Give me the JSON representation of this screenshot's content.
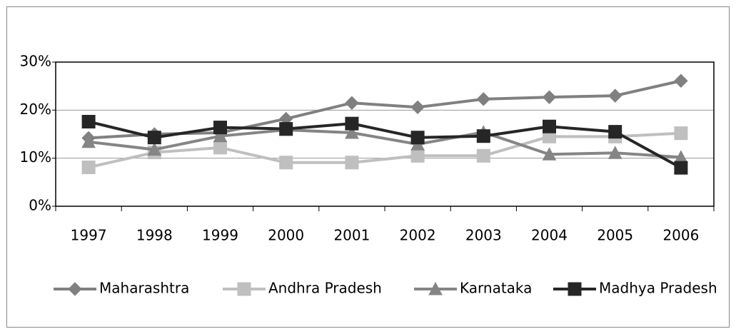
{
  "chart_data": {
    "type": "line",
    "categories": [
      "1997",
      "1998",
      "1999",
      "2000",
      "2001",
      "2002",
      "2003",
      "2004",
      "2005",
      "2006"
    ],
    "series": [
      {
        "name": "Maharashtra",
        "color": "#808080",
        "marker": "diamond",
        "values": [
          14.2,
          15.0,
          15.3,
          18.2,
          21.5,
          20.6,
          22.3,
          22.7,
          23.0,
          26.1
        ]
      },
      {
        "name": "Andhra Pradesh",
        "color": "#bfbfbf",
        "marker": "square",
        "values": [
          8.1,
          11.2,
          12.2,
          9.1,
          9.1,
          10.5,
          10.5,
          14.5,
          14.5,
          15.2
        ]
      },
      {
        "name": "Karnataka",
        "color": "#858585",
        "marker": "triangle",
        "values": [
          13.4,
          11.8,
          14.6,
          15.9,
          15.3,
          12.9,
          15.4,
          10.8,
          11.1,
          10.2
        ]
      },
      {
        "name": "Madhya Pradesh",
        "color": "#262626",
        "marker": "square",
        "values": [
          17.6,
          14.3,
          16.4,
          16.1,
          17.2,
          14.3,
          14.6,
          16.6,
          15.5,
          8.0
        ]
      }
    ],
    "ylim": [
      0,
      30
    ],
    "yticks": [
      {
        "value": 0,
        "label": "0%"
      },
      {
        "value": 10,
        "label": "10%"
      },
      {
        "value": 20,
        "label": "20%"
      },
      {
        "value": 30,
        "label": "30%"
      }
    ],
    "grid": true,
    "legend": "bottom"
  }
}
